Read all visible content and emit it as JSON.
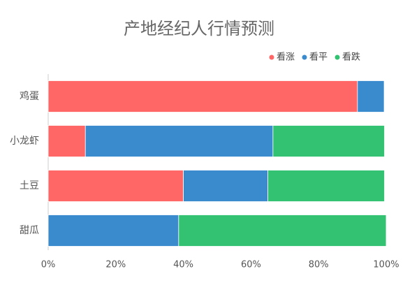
{
  "chart_data": {
    "type": "stacked-barh",
    "title": "产地经纪人行情预测",
    "categories": [
      "鸡蛋",
      "小龙虾",
      "土豆",
      "甜瓜"
    ],
    "series": [
      {
        "name": "看涨",
        "color": "#ff6666",
        "values": [
          91.5,
          11,
          40,
          0
        ]
      },
      {
        "name": "看平",
        "color": "#3a8bcd",
        "values": [
          7.9,
          55.5,
          25,
          38.6
        ]
      },
      {
        "name": "看跌",
        "color": "#33c172",
        "values": [
          0,
          33,
          34.5,
          61.4
        ]
      }
    ],
    "xlim": [
      0,
      100
    ],
    "xticks": [
      {
        "value": 0,
        "label": "0%"
      },
      {
        "value": 20,
        "label": "20%"
      },
      {
        "value": 40,
        "label": "40%"
      },
      {
        "value": 60,
        "label": "60%"
      },
      {
        "value": 80,
        "label": "80%"
      },
      {
        "value": 100,
        "label": "100%"
      }
    ],
    "legend": "top-right"
  }
}
